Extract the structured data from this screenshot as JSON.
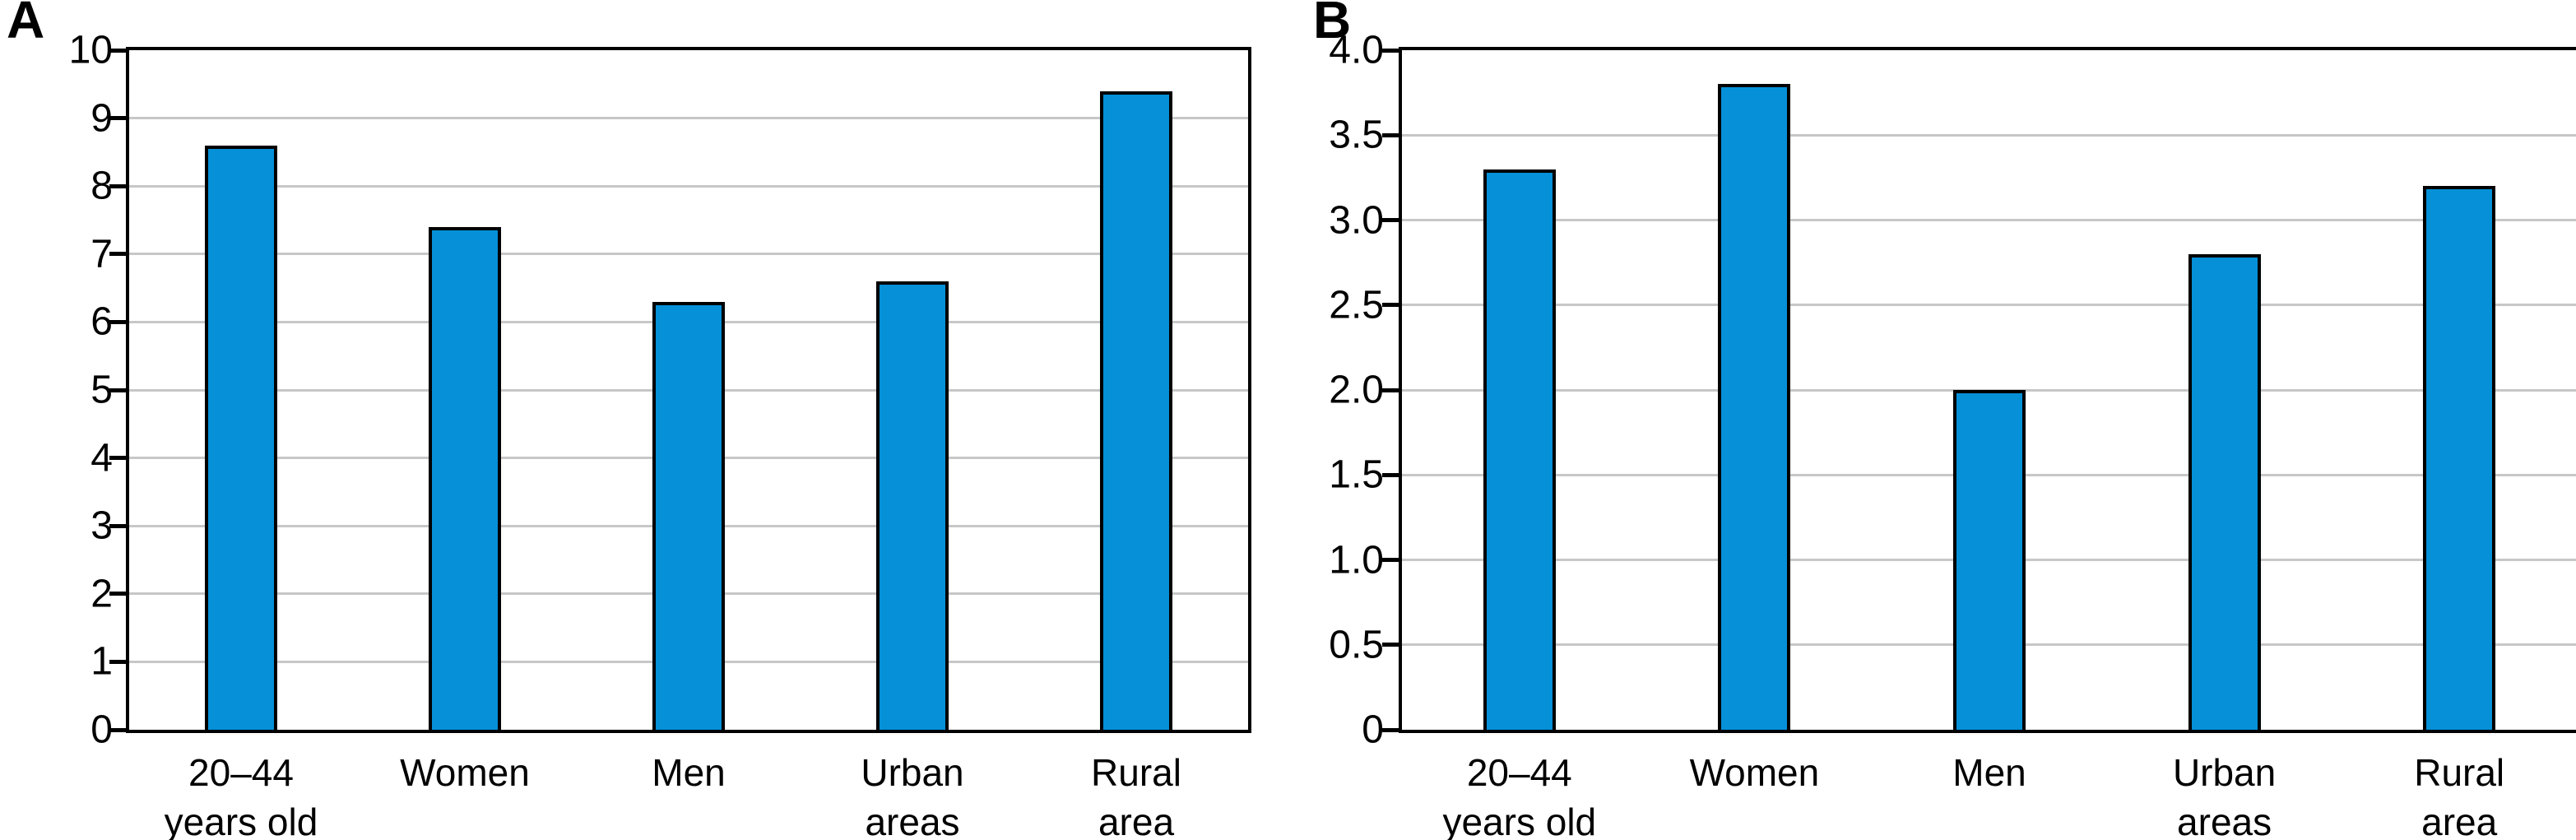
{
  "figure": {
    "description": "Two-panel bar figure",
    "colors": {
      "bar_fill": "#0590d8",
      "bar_border": "#000000",
      "gridline": "#c7c7c7",
      "axis": "#000000",
      "text": "#000000",
      "background": "#ffffff"
    }
  },
  "chart_data": [
    {
      "type": "bar",
      "panel_label": "A",
      "title": "",
      "xlabel": "",
      "ylabel": "",
      "categories": [
        "20–44 years old",
        "Women",
        "Men",
        "Urban areas",
        "Rural area"
      ],
      "categories_lines": [
        [
          "20–44",
          "years old"
        ],
        [
          "Women"
        ],
        [
          "Men"
        ],
        [
          "Urban",
          "areas"
        ],
        [
          "Rural",
          "area"
        ]
      ],
      "values": [
        8.6,
        7.4,
        6.3,
        6.6,
        9.4
      ],
      "ylim": [
        0,
        10
      ],
      "ytick_step": 1,
      "yticks_top_to_bottom": [
        "10",
        "9",
        "8",
        "7",
        "6",
        "5",
        "4",
        "3",
        "2",
        "1",
        "0"
      ],
      "grid": true,
      "legend": null
    },
    {
      "type": "bar",
      "panel_label": "B",
      "title": "",
      "xlabel": "",
      "ylabel": "",
      "categories": [
        "20–44 years old",
        "Women",
        "Men",
        "Urban areas",
        "Rural area"
      ],
      "categories_lines": [
        [
          "20–44",
          "years old"
        ],
        [
          "Women"
        ],
        [
          "Men"
        ],
        [
          "Urban",
          "areas"
        ],
        [
          "Rural",
          "area"
        ]
      ],
      "values": [
        3.3,
        3.8,
        2.0,
        2.8,
        3.2
      ],
      "ylim": [
        0,
        4.0
      ],
      "ytick_step": 0.5,
      "yticks_top_to_bottom": [
        "4.0",
        "3.5",
        "3.0",
        "2.5",
        "2.0",
        "1.5",
        "1.0",
        "0.5",
        "0"
      ],
      "grid": true,
      "legend": null
    }
  ]
}
